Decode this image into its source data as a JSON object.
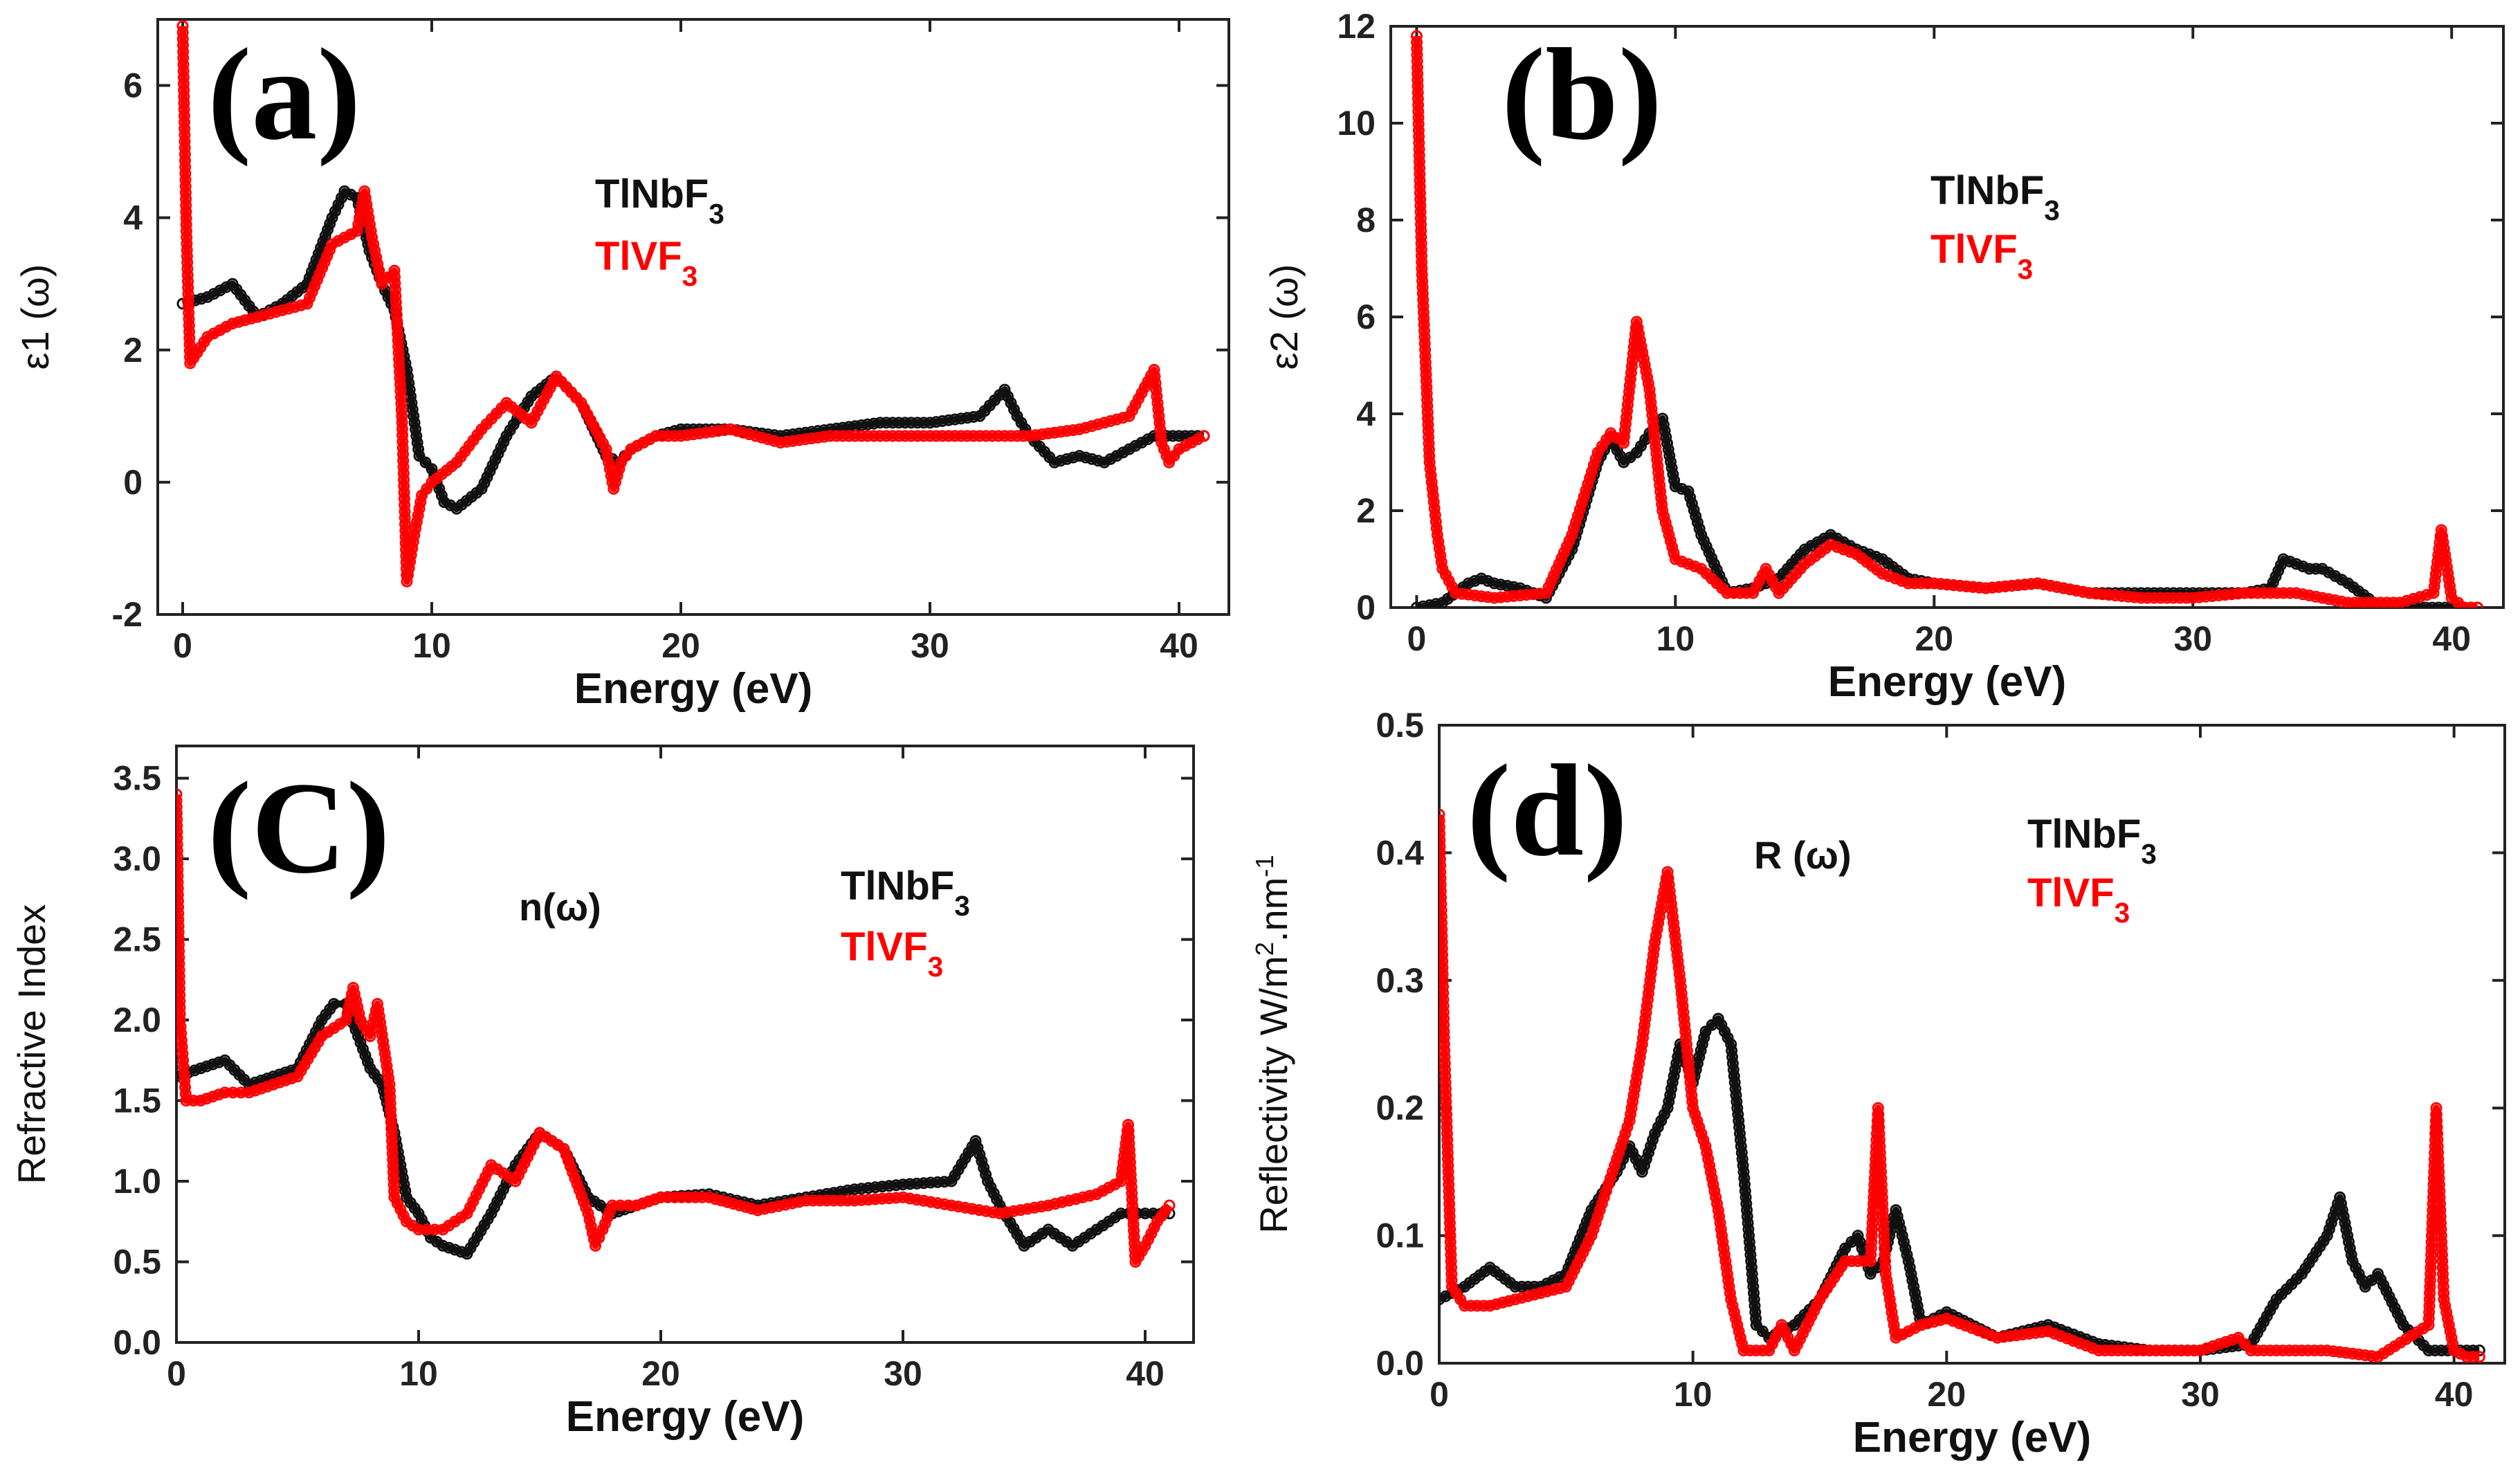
{
  "chart_data": [
    {
      "type": "line",
      "panel_label": "(a)",
      "xlabel": "Energy (eV)",
      "ylabel": "ε1 (ω)",
      "xlim": [
        -1,
        42
      ],
      "ylim": [
        -2,
        7
      ],
      "xticks": [
        0,
        10,
        20,
        30,
        40
      ],
      "yticks": [
        -2,
        0,
        2,
        4,
        6
      ],
      "annotation": "",
      "legend": [
        "TlNbF3",
        "TlVF3"
      ],
      "series": [
        {
          "name": "TlNbF3",
          "color": "#111111",
          "x": [
            0,
            1,
            2,
            3,
            4,
            5,
            6,
            6.5,
            7,
            7.5,
            8,
            8.5,
            9,
            9.5,
            10,
            10.5,
            11,
            12,
            13,
            14,
            15,
            16,
            17,
            17.5,
            18,
            19,
            20,
            22,
            24,
            26,
            28,
            30,
            32,
            33,
            33.5,
            34,
            35,
            36,
            37,
            38,
            39,
            40,
            41
          ],
          "y": [
            2.7,
            2.8,
            3.0,
            2.5,
            2.7,
            3.0,
            4.0,
            4.4,
            4.3,
            3.5,
            3.0,
            2.6,
            1.7,
            0.4,
            0.2,
            -0.3,
            -0.4,
            -0.1,
            0.7,
            1.3,
            1.6,
            1.2,
            0.4,
            0.3,
            0.5,
            0.7,
            0.8,
            0.8,
            0.7,
            0.8,
            0.9,
            0.9,
            1.0,
            1.4,
            1.0,
            0.7,
            0.3,
            0.4,
            0.3,
            0.5,
            0.7,
            0.7,
            0.7
          ]
        },
        {
          "name": "TlVF3",
          "color": "#ff0000",
          "x": [
            0,
            0.15,
            0.3,
            1,
            2,
            3,
            4,
            5,
            6,
            7,
            7.3,
            7.6,
            8,
            8.5,
            8.8,
            9,
            9.3,
            9.6,
            10,
            11,
            12,
            13,
            14,
            15,
            16,
            17,
            17.3,
            17.6,
            18,
            19,
            20,
            22,
            24,
            26,
            28,
            30,
            32,
            34,
            36,
            38,
            39,
            39.3,
            39.6,
            40,
            40.5,
            41
          ],
          "y": [
            6.9,
            3.8,
            1.8,
            2.2,
            2.4,
            2.5,
            2.6,
            2.7,
            3.6,
            3.8,
            4.4,
            3.7,
            3.0,
            3.2,
            1.0,
            -1.5,
            -0.8,
            -0.2,
            0.0,
            0.3,
            0.8,
            1.2,
            0.9,
            1.6,
            1.2,
            0.5,
            -0.1,
            0.3,
            0.5,
            0.7,
            0.7,
            0.8,
            0.6,
            0.7,
            0.7,
            0.7,
            0.7,
            0.7,
            0.8,
            1.0,
            1.7,
            0.6,
            0.3,
            0.5,
            0.6,
            0.7
          ]
        }
      ]
    },
    {
      "type": "line",
      "panel_label": "(b)",
      "xlabel": "Energy (eV)",
      "ylabel": "ε2 (ω)",
      "xlim": [
        -1,
        42
      ],
      "ylim": [
        0,
        12
      ],
      "xticks": [
        0,
        10,
        20,
        30,
        40
      ],
      "yticks": [
        0,
        2,
        4,
        6,
        8,
        10,
        12
      ],
      "annotation": "",
      "legend": [
        "TlNbF3",
        "TlVF3"
      ],
      "series": [
        {
          "name": "TlNbF3",
          "color": "#111111",
          "x": [
            0,
            1,
            2,
            2.5,
            3,
            4,
            5,
            6,
            7,
            7.5,
            8,
            8.5,
            9,
            9.5,
            10,
            10.5,
            11,
            12,
            13,
            14,
            15,
            16,
            17,
            18,
            19,
            20,
            22,
            24,
            26,
            28,
            30,
            32,
            33,
            33.5,
            34,
            34.5,
            35,
            36,
            37,
            38,
            39,
            40,
            41
          ],
          "y": [
            0,
            0.1,
            0.5,
            0.6,
            0.5,
            0.4,
            0.2,
            1.2,
            3.0,
            3.5,
            3.0,
            3.2,
            3.6,
            3.9,
            2.5,
            2.4,
            1.5,
            0.3,
            0.4,
            0.6,
            1.2,
            1.5,
            1.2,
            1.0,
            0.6,
            0.5,
            0.4,
            0.5,
            0.3,
            0.3,
            0.3,
            0.3,
            0.4,
            1.0,
            0.9,
            0.8,
            0.8,
            0.5,
            0.1,
            0.1,
            0.0,
            0.0,
            0.0
          ]
        },
        {
          "name": "TlVF3",
          "color": "#ff0000",
          "x": [
            0,
            0.2,
            0.5,
            0.8,
            1,
            1.5,
            3,
            5,
            6,
            7,
            7.5,
            8,
            8.5,
            9,
            9.5,
            10,
            11,
            12,
            13,
            13.5,
            14,
            15,
            16,
            17,
            18,
            19,
            20,
            22,
            24,
            26,
            28,
            30,
            32,
            34,
            36,
            38,
            39.3,
            39.6,
            40,
            40.5,
            41
          ],
          "y": [
            11.8,
            7.0,
            3.0,
            1.5,
            0.8,
            0.3,
            0.2,
            0.3,
            1.5,
            3.2,
            3.6,
            3.4,
            5.9,
            4.5,
            2.0,
            1.0,
            0.8,
            0.3,
            0.3,
            0.8,
            0.3,
            0.9,
            1.3,
            1.1,
            0.7,
            0.5,
            0.5,
            0.4,
            0.5,
            0.3,
            0.2,
            0.2,
            0.3,
            0.3,
            0.1,
            0.1,
            0.3,
            1.6,
            0.2,
            0.0,
            0.0
          ]
        }
      ]
    },
    {
      "type": "line",
      "panel_label": "(C)",
      "xlabel": "Energy (eV)",
      "ylabel": "Refractive Index",
      "xlim": [
        0,
        42
      ],
      "ylim": [
        0,
        3.7
      ],
      "xticks": [
        0,
        10,
        20,
        30,
        40
      ],
      "yticks": [
        0.0,
        0.5,
        1.0,
        1.5,
        2.0,
        2.5,
        3.0,
        3.5
      ],
      "ytick_labels": [
        "0.0",
        "0.5",
        "1.0",
        "1.5",
        "2.0",
        "2.5",
        "3.0",
        "3.5"
      ],
      "annotation": "n(ω)",
      "legend": [
        "TlNbF3",
        "TlVF3"
      ],
      "series": [
        {
          "name": "TlNbF3",
          "color": "#111111",
          "x": [
            0,
            1,
            2,
            3,
            4,
            5,
            6,
            6.5,
            7,
            7.5,
            8,
            8.5,
            9,
            9.5,
            10,
            10.5,
            11,
            12,
            13,
            14,
            15,
            16,
            17,
            17.5,
            18,
            19,
            20,
            22,
            24,
            26,
            28,
            30,
            32,
            33,
            33.5,
            34,
            35,
            36,
            37,
            38,
            39,
            40,
            41
          ],
          "y": [
            1.65,
            1.7,
            1.75,
            1.6,
            1.65,
            1.7,
            2.0,
            2.1,
            2.1,
            1.9,
            1.7,
            1.6,
            1.3,
            0.9,
            0.8,
            0.65,
            0.6,
            0.55,
            0.8,
            1.1,
            1.3,
            1.2,
            0.9,
            0.85,
            0.8,
            0.85,
            0.9,
            0.92,
            0.85,
            0.9,
            0.95,
            0.98,
            1.0,
            1.25,
            1.0,
            0.85,
            0.6,
            0.7,
            0.6,
            0.7,
            0.8,
            0.8,
            0.8
          ]
        },
        {
          "name": "TlVF3",
          "color": "#ff0000",
          "x": [
            0,
            0.15,
            0.4,
            1,
            2,
            3,
            4,
            5,
            6,
            7,
            7.3,
            7.6,
            8,
            8.3,
            8.8,
            9,
            9.5,
            10,
            11,
            12,
            13,
            14,
            15,
            16,
            17,
            17.3,
            17.6,
            18,
            19,
            20,
            22,
            24,
            26,
            28,
            30,
            32,
            34,
            36,
            38,
            39,
            39.3,
            39.6,
            40,
            40.5,
            41
          ],
          "y": [
            3.4,
            2.0,
            1.5,
            1.5,
            1.55,
            1.55,
            1.6,
            1.65,
            1.9,
            2.0,
            2.2,
            2.0,
            1.9,
            2.1,
            1.6,
            0.9,
            0.75,
            0.7,
            0.7,
            0.8,
            1.1,
            1.0,
            1.3,
            1.2,
            0.8,
            0.6,
            0.7,
            0.85,
            0.85,
            0.9,
            0.9,
            0.82,
            0.88,
            0.88,
            0.9,
            0.85,
            0.8,
            0.85,
            0.92,
            1.0,
            1.35,
            0.5,
            0.6,
            0.75,
            0.85
          ]
        }
      ]
    },
    {
      "type": "line",
      "panel_label": "(d)",
      "xlabel": "Energy (eV)",
      "ylabel": "Reflectivity W/m2.nm-1",
      "xlim": [
        0,
        42
      ],
      "ylim": [
        0,
        0.5
      ],
      "xticks": [
        0,
        10,
        20,
        30,
        40
      ],
      "yticks": [
        0.0,
        0.1,
        0.2,
        0.3,
        0.4,
        0.5
      ],
      "ytick_labels": [
        "0.0",
        "0.1",
        "0.2",
        "0.3",
        "0.4",
        "0.5"
      ],
      "annotation": "R (ω)",
      "legend": [
        "TlNbF3",
        "TlVF3"
      ],
      "series": [
        {
          "name": "TlNbF3",
          "color": "#111111",
          "x": [
            0,
            1,
            2,
            3,
            4,
            5,
            6,
            7,
            7.5,
            8,
            8.5,
            9,
            9.5,
            10,
            10.5,
            11,
            11.5,
            12,
            12.5,
            13,
            14,
            15,
            16,
            16.5,
            17,
            17.5,
            18,
            18.5,
            19,
            20,
            22,
            24,
            26,
            28,
            30,
            32,
            33,
            34,
            35,
            35.5,
            36,
            36.5,
            37,
            38,
            39,
            40,
            41
          ],
          "y": [
            0.05,
            0.06,
            0.075,
            0.06,
            0.06,
            0.07,
            0.12,
            0.15,
            0.17,
            0.15,
            0.18,
            0.2,
            0.25,
            0.22,
            0.26,
            0.27,
            0.25,
            0.15,
            0.03,
            0.02,
            0.03,
            0.05,
            0.09,
            0.1,
            0.07,
            0.08,
            0.12,
            0.08,
            0.03,
            0.04,
            0.02,
            0.03,
            0.015,
            0.01,
            0.01,
            0.015,
            0.05,
            0.07,
            0.1,
            0.13,
            0.08,
            0.06,
            0.07,
            0.03,
            0.01,
            0.01,
            0.01
          ]
        },
        {
          "name": "TlVF3",
          "color": "#ff0000",
          "x": [
            0,
            0.2,
            0.5,
            1,
            2,
            3,
            4,
            5,
            6,
            7,
            7.5,
            8,
            8.5,
            9,
            9.5,
            10,
            10.5,
            11,
            11.5,
            12,
            13,
            13.5,
            14,
            15,
            16,
            17,
            17.3,
            17.6,
            18,
            19,
            20,
            22,
            24,
            26,
            28,
            30,
            31.5,
            32,
            33,
            35,
            37,
            39,
            39.3,
            39.6,
            40,
            40.5,
            41
          ],
          "y": [
            0.43,
            0.25,
            0.06,
            0.045,
            0.045,
            0.05,
            0.055,
            0.06,
            0.1,
            0.16,
            0.19,
            0.25,
            0.33,
            0.385,
            0.3,
            0.2,
            0.17,
            0.12,
            0.05,
            0.01,
            0.01,
            0.03,
            0.01,
            0.05,
            0.08,
            0.08,
            0.2,
            0.07,
            0.02,
            0.03,
            0.035,
            0.02,
            0.025,
            0.01,
            0.01,
            0.01,
            0.02,
            0.01,
            0.01,
            0.01,
            0.005,
            0.03,
            0.2,
            0.05,
            0.01,
            0.005,
            0.005
          ]
        }
      ]
    }
  ]
}
